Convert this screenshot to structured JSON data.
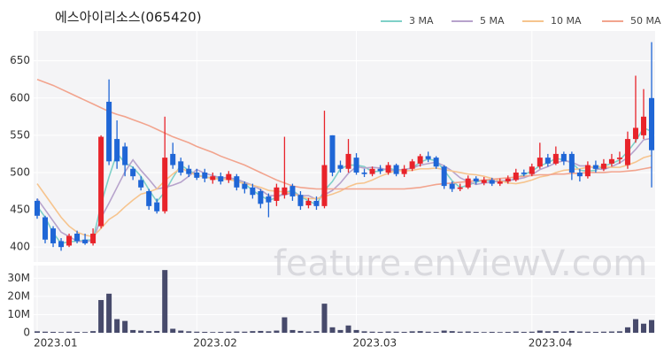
{
  "chart_data": [
    {
      "type": "candlestick",
      "title": "에스아이리소스(065420)",
      "watermark": "feature.enViewV.com",
      "up_color": "#e8232a",
      "down_color": "#1f66d6",
      "grid": true,
      "legend": "top-right",
      "ylim": [
        380,
        690
      ],
      "yticks": [
        400,
        450,
        500,
        550,
        600,
        650
      ],
      "open": [
        462,
        440,
        425,
        408,
        402,
        418,
        410,
        405,
        428,
        595,
        545,
        535,
        505,
        490,
        475,
        460,
        448,
        525,
        515,
        505,
        500,
        500,
        490,
        495,
        490,
        495,
        485,
        480,
        475,
        468,
        462,
        470,
        482,
        470,
        456,
        462,
        455,
        550,
        510,
        505,
        520,
        500,
        498,
        505,
        500,
        510,
        498,
        505,
        512,
        522,
        520,
        508,
        485,
        478,
        480,
        492,
        486,
        490,
        485,
        488,
        490,
        500,
        498,
        508,
        520,
        512,
        525,
        525,
        500,
        495,
        510,
        505,
        512,
        518,
        510,
        545,
        550,
        600
      ],
      "high": [
        465,
        442,
        428,
        412,
        418,
        422,
        418,
        425,
        550,
        625,
        570,
        540,
        508,
        495,
        478,
        465,
        575,
        540,
        520,
        510,
        505,
        505,
        500,
        500,
        502,
        498,
        488,
        485,
        478,
        472,
        485,
        548,
        485,
        475,
        466,
        468,
        583,
        550,
        516,
        545,
        526,
        505,
        508,
        510,
        514,
        512,
        510,
        518,
        525,
        528,
        522,
        510,
        488,
        485,
        496,
        495,
        494,
        493,
        492,
        496,
        505,
        504,
        512,
        540,
        525,
        535,
        528,
        528,
        505,
        515,
        516,
        518,
        525,
        528,
        555,
        630,
        612,
        675
      ],
      "low": [
        438,
        405,
        400,
        395,
        400,
        405,
        403,
        402,
        425,
        510,
        505,
        495,
        490,
        476,
        450,
        445,
        445,
        505,
        496,
        494,
        490,
        487,
        485,
        484,
        486,
        476,
        472,
        465,
        452,
        440,
        455,
        465,
        462,
        450,
        452,
        450,
        452,
        495,
        500,
        500,
        497,
        494,
        495,
        498,
        497,
        495,
        494,
        502,
        508,
        514,
        505,
        478,
        474,
        475,
        478,
        484,
        483,
        482,
        482,
        485,
        488,
        495,
        495,
        505,
        508,
        510,
        510,
        490,
        488,
        492,
        500,
        502,
        508,
        512,
        505,
        540,
        545,
        480
      ],
      "close": [
        442,
        410,
        405,
        400,
        415,
        408,
        405,
        418,
        548,
        515,
        515,
        510,
        495,
        480,
        455,
        448,
        520,
        510,
        500,
        498,
        493,
        492,
        495,
        488,
        498,
        480,
        478,
        470,
        458,
        460,
        480,
        480,
        468,
        455,
        462,
        455,
        510,
        500,
        505,
        525,
        500,
        498,
        505,
        502,
        510,
        498,
        505,
        515,
        522,
        518,
        508,
        482,
        478,
        480,
        492,
        488,
        490,
        485,
        488,
        492,
        500,
        498,
        508,
        520,
        512,
        525,
        515,
        500,
        495,
        510,
        505,
        512,
        518,
        520,
        545,
        560,
        575,
        530
      ],
      "series": [
        {
          "name": "3 MA",
          "color": "#7fd0c8",
          "values": [
            455,
            440,
            419,
            405,
            407,
            408,
            409,
            410,
            457,
            494,
            526,
            513,
            507,
            495,
            477,
            461,
            474,
            493,
            510,
            503,
            497,
            494,
            493,
            492,
            494,
            489,
            485,
            476,
            469,
            463,
            466,
            473,
            476,
            468,
            462,
            457,
            476,
            488,
            505,
            510,
            510,
            508,
            501,
            502,
            506,
            503,
            504,
            506,
            514,
            518,
            516,
            503,
            489,
            480,
            483,
            487,
            490,
            488,
            488,
            488,
            493,
            497,
            502,
            509,
            513,
            519,
            517,
            513,
            503,
            502,
            503,
            509,
            512,
            517,
            528,
            542,
            560,
            555
          ]
        },
        {
          "name": "5 MA",
          "color": "#b7a3cc",
          "values": [
            465,
            450,
            435,
            420,
            414,
            408,
            407,
            409,
            439,
            459,
            480,
            501,
            517,
            503,
            491,
            478,
            480,
            483,
            487,
            495,
            504,
            499,
            496,
            493,
            493,
            491,
            487,
            483,
            477,
            469,
            469,
            470,
            473,
            469,
            469,
            464,
            470,
            476,
            486,
            499,
            508,
            506,
            507,
            506,
            503,
            503,
            504,
            506,
            510,
            512,
            514,
            509,
            502,
            493,
            488,
            484,
            486,
            487,
            489,
            489,
            491,
            493,
            497,
            504,
            508,
            513,
            516,
            514,
            509,
            509,
            505,
            504,
            508,
            513,
            520,
            531,
            544,
            546
          ]
        },
        {
          "name": "10 MA",
          "color": "#f6c48e",
          "values": [
            485,
            470,
            455,
            440,
            428,
            420,
            416,
            414,
            425,
            437,
            444,
            454,
            463,
            471,
            474,
            478,
            489,
            498,
            506,
            501,
            496,
            494,
            492,
            491,
            491,
            488,
            485,
            483,
            480,
            476,
            475,
            474,
            472,
            468,
            465,
            465,
            468,
            471,
            475,
            481,
            485,
            486,
            490,
            495,
            499,
            503,
            502,
            503,
            505,
            505,
            506,
            504,
            502,
            500,
            498,
            497,
            495,
            492,
            489,
            486,
            485,
            487,
            490,
            494,
            496,
            500,
            503,
            504,
            505,
            507,
            508,
            508,
            507,
            507,
            510,
            514,
            520,
            523
          ]
        },
        {
          "name": "50 MA",
          "color": "#f2a48e",
          "values": [
            625,
            621,
            617,
            612,
            607,
            602,
            597,
            592,
            587,
            582,
            578,
            575,
            571,
            567,
            563,
            558,
            553,
            548,
            544,
            540,
            535,
            531,
            527,
            522,
            518,
            514,
            510,
            505,
            500,
            495,
            490,
            486,
            482,
            480,
            479,
            478,
            478,
            478,
            478,
            478,
            478,
            478,
            478,
            478,
            478,
            478,
            478,
            479,
            480,
            482,
            484,
            485,
            486,
            487,
            488,
            489,
            490,
            491,
            492,
            493,
            494,
            495,
            496,
            497,
            497,
            498,
            498,
            499,
            499,
            500,
            500,
            500,
            501,
            501,
            502,
            503,
            505,
            507
          ]
        }
      ]
    },
    {
      "type": "bar",
      "color": "#474a6b",
      "grid": true,
      "categories": [
        "2023.01",
        null,
        null,
        null,
        null,
        null,
        null,
        null,
        null,
        null,
        null,
        null,
        null,
        null,
        null,
        null,
        null,
        null,
        null,
        null,
        "2023.02",
        null,
        null,
        null,
        null,
        null,
        null,
        null,
        null,
        null,
        null,
        null,
        null,
        null,
        null,
        null,
        null,
        null,
        null,
        null,
        "2023.03",
        null,
        null,
        null,
        null,
        null,
        null,
        null,
        null,
        null,
        null,
        null,
        null,
        null,
        null,
        null,
        null,
        null,
        null,
        null,
        null,
        null,
        "2023.04",
        null,
        null,
        null,
        null,
        null,
        null,
        null,
        null,
        null,
        null,
        null,
        null,
        null,
        null,
        null
      ],
      "values": [
        800000,
        600000,
        500000,
        400000,
        600000,
        500000,
        400000,
        900000,
        18000000,
        21500000,
        7500000,
        6500000,
        1500000,
        1200000,
        900000,
        1000000,
        34500000,
        2200000,
        1200000,
        800000,
        600000,
        500000,
        400000,
        500000,
        600000,
        700000,
        600000,
        900000,
        1000000,
        800000,
        1200000,
        8500000,
        1500000,
        1000000,
        700000,
        900000,
        16000000,
        3000000,
        1500000,
        4000000,
        1500000,
        800000,
        600000,
        500000,
        700000,
        600000,
        500000,
        800000,
        900000,
        600000,
        500000,
        1200000,
        900000,
        600000,
        700000,
        500000,
        400000,
        500000,
        400000,
        500000,
        700000,
        500000,
        600000,
        1200000,
        800000,
        900000,
        600000,
        1000000,
        700000,
        600000,
        500000,
        600000,
        700000,
        800000,
        3000000,
        7500000,
        5000000,
        7000000
      ],
      "ylim": [
        0,
        37000000
      ],
      "yticks": [
        0,
        {
          "value": 10000000,
          "label": "10M"
        },
        {
          "value": 20000000,
          "label": "20M"
        },
        {
          "value": 30000000,
          "label": "30M"
        }
      ]
    }
  ]
}
